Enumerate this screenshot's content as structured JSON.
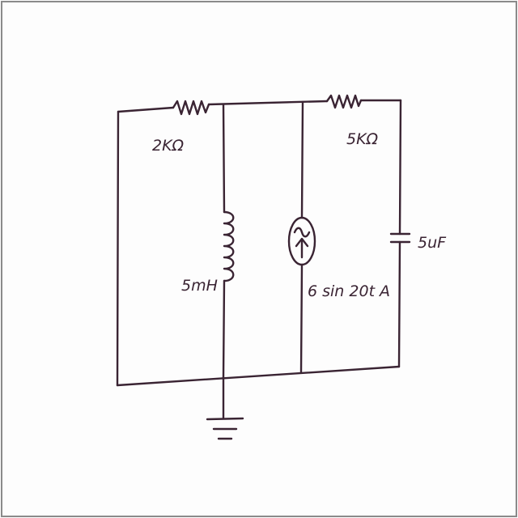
{
  "colors": {
    "ink": "#3a2433",
    "paper": "#fdfdfd",
    "border": "#8a8a8a"
  },
  "components": {
    "resistor_left": {
      "label": "2KΩ"
    },
    "resistor_right": {
      "label": "5KΩ"
    },
    "inductor": {
      "label": "5mH"
    },
    "current_source": {
      "label": "6 sin 20t A",
      "icon": "ac-current-source-icon"
    },
    "capacitor": {
      "label": "5uF"
    },
    "ground": {
      "icon": "ground-icon"
    }
  }
}
